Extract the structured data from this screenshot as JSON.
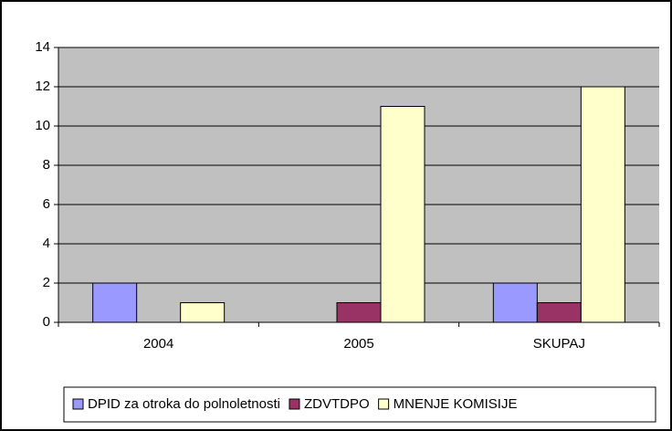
{
  "chart_data": {
    "type": "bar",
    "categories": [
      "2004",
      "2005",
      "SKUPAJ"
    ],
    "series": [
      {
        "name": "DPID za otroka do polnoletnosti",
        "color": "#9999ff",
        "values": [
          2,
          0,
          2
        ]
      },
      {
        "name": "ZDVTDPO",
        "color": "#993366",
        "values": [
          0,
          1,
          1
        ]
      },
      {
        "name": "MNENJE KOMISIJE",
        "color": "#ffffcc",
        "values": [
          1,
          11,
          12
        ]
      }
    ],
    "ylim": [
      0,
      14
    ],
    "yticks": [
      0,
      2,
      4,
      6,
      8,
      10,
      12,
      14
    ],
    "grid": true,
    "legend": "bottom"
  }
}
